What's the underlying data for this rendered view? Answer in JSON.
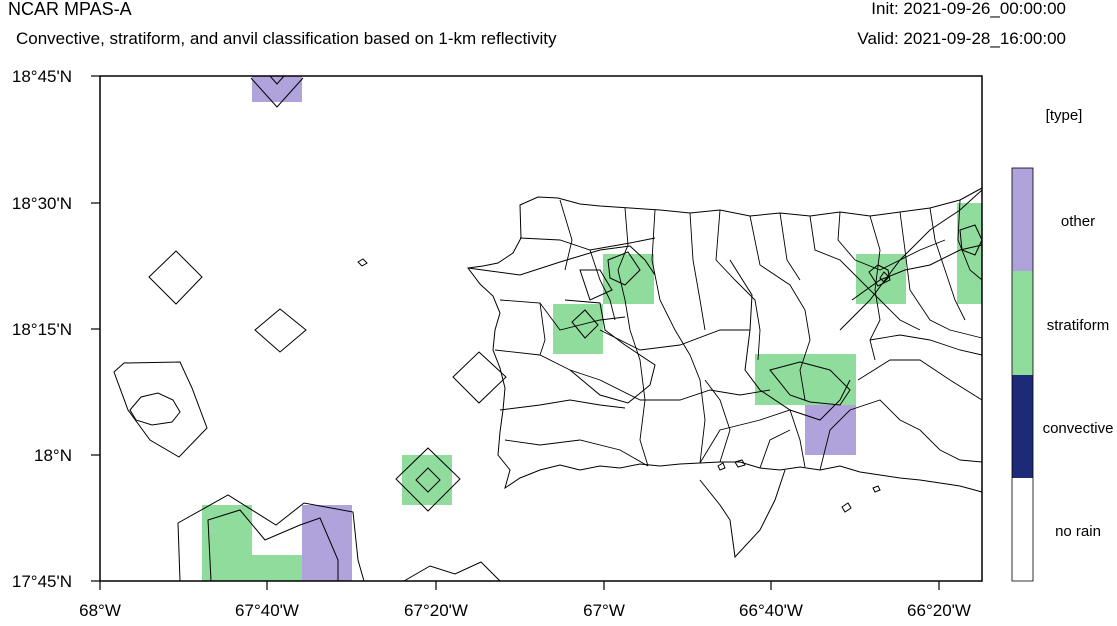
{
  "header": {
    "title": "NCAR MPAS-A",
    "subtitle": "Convective, stratiform, and anvil classification based on 1-km reflectivity",
    "init": "Init: 2021-09-26_00:00:00",
    "valid": "Valid: 2021-09-28_16:00:00"
  },
  "axes": {
    "x_ticks": [
      "68°W",
      "67°40'W",
      "67°20'W",
      "67°W",
      "66°40'W",
      "66°20'W"
    ],
    "y_ticks": [
      "18°45'N",
      "18°30'N",
      "18°15'N",
      "18°N",
      "17°45'N"
    ]
  },
  "legend": {
    "title": "[type]",
    "items": [
      {
        "label": "other",
        "color": "#b0a3dc"
      },
      {
        "label": "stratiform",
        "color": "#90dc9c"
      },
      {
        "label": "convective",
        "color": "#1c2a78"
      },
      {
        "label": "no rain",
        "color": "#ffffff"
      }
    ]
  },
  "map": {
    "colors": {
      "other": "#b0a3dc",
      "stratiform": "#90dc9c",
      "outline": "#000000"
    }
  }
}
